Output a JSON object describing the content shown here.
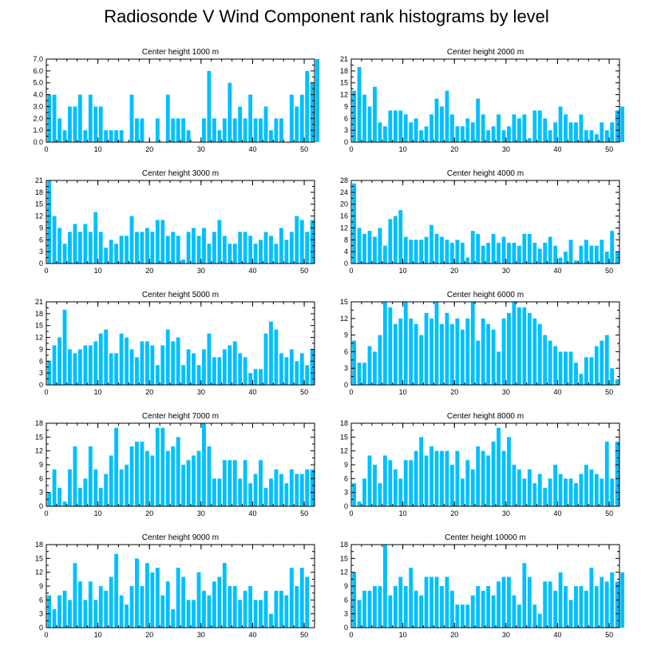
{
  "title": "Radiosonde V Wind Component rank histograms by level",
  "chart_data": [
    {
      "type": "bar",
      "title": "Center height 1000 m",
      "xlim": [
        0,
        52
      ],
      "xticks": [
        0,
        10,
        20,
        30,
        40,
        50
      ],
      "ylim": [
        0,
        7
      ],
      "yticks": [
        0,
        1,
        2,
        3,
        4,
        5,
        6,
        7
      ],
      "ytick_labels": [
        "0.0",
        "1.0",
        "2.0",
        "3.0",
        "4.0",
        "5.0",
        "6.0",
        "7.0"
      ],
      "values": [
        4,
        4,
        2,
        1,
        3,
        3,
        4,
        1,
        4,
        3,
        3,
        1,
        1,
        1,
        1,
        0,
        4,
        2,
        2,
        0,
        0,
        2,
        0,
        4,
        2,
        2,
        2,
        1,
        0,
        0,
        2,
        6,
        2,
        1,
        2,
        5,
        2,
        3,
        2,
        4,
        2,
        2,
        3,
        1,
        2,
        2,
        0,
        4,
        3,
        4,
        6,
        5,
        7
      ]
    },
    {
      "type": "bar",
      "title": "Center height 2000 m",
      "xlim": [
        0,
        52
      ],
      "xticks": [
        0,
        10,
        20,
        30,
        40,
        50
      ],
      "ylim": [
        0,
        21
      ],
      "yticks": [
        0,
        3,
        6,
        9,
        12,
        15,
        18,
        21
      ],
      "ytick_labels": [
        "0",
        "3",
        "6",
        "9",
        "12",
        "15",
        "18",
        "21"
      ],
      "values": [
        13,
        19,
        12,
        9,
        14,
        5,
        4,
        8,
        8,
        8,
        7,
        5,
        6,
        3,
        4,
        7,
        11,
        9,
        13,
        7,
        4,
        4,
        6,
        5,
        11,
        7,
        3,
        4,
        7,
        3,
        4,
        7,
        6,
        7,
        1,
        8,
        8,
        6,
        3,
        5,
        9,
        7,
        5,
        5,
        7,
        3,
        3,
        2,
        5,
        3,
        5,
        8,
        9
      ]
    },
    {
      "type": "bar",
      "title": "Center height 3000 m",
      "xlim": [
        0,
        52
      ],
      "xticks": [
        0,
        10,
        20,
        30,
        40,
        50
      ],
      "ylim": [
        0,
        21
      ],
      "yticks": [
        0,
        3,
        6,
        9,
        12,
        15,
        18,
        21
      ],
      "ytick_labels": [
        "0",
        "3",
        "6",
        "9",
        "12",
        "15",
        "18",
        "21"
      ],
      "values": [
        21,
        12,
        9,
        5,
        8,
        10,
        8,
        10,
        8,
        13,
        8,
        4,
        6,
        5,
        7,
        7,
        12,
        8,
        8,
        9,
        8,
        11,
        11,
        7,
        8,
        7,
        1,
        8,
        9,
        7,
        9,
        5,
        8,
        11,
        7,
        5,
        5,
        8,
        8,
        7,
        5,
        6,
        8,
        7,
        5,
        9,
        6,
        8,
        12,
        11,
        8,
        11
      ]
    },
    {
      "type": "bar",
      "title": "Center height 4000 m",
      "xlim": [
        0,
        52
      ],
      "xticks": [
        0,
        10,
        20,
        30,
        40,
        50
      ],
      "ylim": [
        0,
        28
      ],
      "yticks": [
        0,
        4,
        8,
        12,
        16,
        20,
        24,
        28
      ],
      "ytick_labels": [
        "0",
        "4",
        "8",
        "12",
        "16",
        "20",
        "24",
        "28"
      ],
      "values": [
        27,
        12,
        10,
        11,
        9,
        12,
        6,
        15,
        16,
        18,
        9,
        8,
        8,
        8,
        9,
        13,
        10,
        9,
        8,
        7,
        8,
        7,
        2,
        11,
        10,
        6,
        7,
        10,
        7,
        9,
        7,
        7,
        6,
        10,
        10,
        7,
        5,
        7,
        9,
        6,
        2,
        4,
        8,
        1,
        6,
        8,
        6,
        6,
        8,
        4,
        11,
        4
      ]
    },
    {
      "type": "bar",
      "title": "Center height 5000 m",
      "xlim": [
        0,
        52
      ],
      "xticks": [
        0,
        10,
        20,
        30,
        40,
        50
      ],
      "ylim": [
        0,
        21
      ],
      "yticks": [
        0,
        3,
        6,
        9,
        12,
        15,
        18,
        21
      ],
      "ytick_labels": [
        "0",
        "3",
        "6",
        "9",
        "12",
        "15",
        "18",
        "21"
      ],
      "values": [
        6,
        10,
        12,
        19,
        9,
        8,
        9,
        10,
        10,
        11,
        13,
        14,
        8,
        8,
        13,
        12,
        9,
        7,
        11,
        11,
        10,
        5,
        10,
        14,
        11,
        12,
        5,
        9,
        8,
        5,
        9,
        13,
        7,
        7,
        9,
        10,
        11,
        8,
        7,
        3,
        4,
        4,
        13,
        16,
        14,
        8,
        7,
        9,
        6,
        8,
        5,
        9
      ]
    },
    {
      "type": "bar",
      "title": "Center height 6000 m",
      "xlim": [
        0,
        52
      ],
      "xticks": [
        0,
        10,
        20,
        30,
        40,
        50
      ],
      "ylim": [
        0,
        15
      ],
      "yticks": [
        0,
        3,
        6,
        9,
        12,
        15
      ],
      "ytick_labels": [
        "0",
        "3",
        "6",
        "9",
        "12",
        "15"
      ],
      "values": [
        8,
        4,
        4,
        7,
        6,
        9,
        15,
        14,
        11,
        12,
        15,
        12,
        11,
        9,
        13,
        12,
        15,
        11,
        13,
        11,
        12,
        10,
        12,
        15,
        8,
        12,
        11,
        10,
        6,
        12,
        13,
        15,
        14,
        14,
        13,
        12,
        11,
        9,
        8,
        7,
        6,
        6,
        6,
        4,
        2,
        5,
        5,
        7,
        8,
        9,
        3,
        1
      ]
    },
    {
      "type": "bar",
      "title": "Center height 7000 m",
      "xlim": [
        0,
        52
      ],
      "xticks": [
        0,
        10,
        20,
        30,
        40,
        50
      ],
      "ylim": [
        0,
        18
      ],
      "yticks": [
        0,
        3,
        6,
        9,
        12,
        15,
        18
      ],
      "ytick_labels": [
        "0",
        "3",
        "6",
        "9",
        "12",
        "15",
        "18"
      ],
      "values": [
        3,
        8,
        4,
        1,
        8,
        13,
        4,
        6,
        13,
        8,
        4,
        7,
        11,
        17,
        8,
        9,
        13,
        14,
        14,
        12,
        11,
        17,
        17,
        12,
        13,
        15,
        9,
        10,
        11,
        12,
        18,
        13,
        6,
        6,
        10,
        10,
        10,
        6,
        10,
        5,
        7,
        10,
        4,
        6,
        8,
        7,
        5,
        8,
        7,
        7,
        8,
        8
      ]
    },
    {
      "type": "bar",
      "title": "Center height 8000 m",
      "xlim": [
        0,
        52
      ],
      "xticks": [
        0,
        10,
        20,
        30,
        40,
        50
      ],
      "ylim": [
        0,
        18
      ],
      "yticks": [
        0,
        3,
        6,
        9,
        12,
        15,
        18
      ],
      "ytick_labels": [
        "0",
        "3",
        "6",
        "9",
        "12",
        "15",
        "18"
      ],
      "values": [
        5,
        1,
        6,
        11,
        9,
        5,
        11,
        10,
        8,
        6,
        10,
        10,
        12,
        15,
        11,
        13,
        12,
        12,
        12,
        9,
        12,
        6,
        10,
        8,
        13,
        12,
        11,
        14,
        17,
        12,
        15,
        9,
        8,
        6,
        8,
        5,
        7,
        4,
        6,
        9,
        7,
        6,
        6,
        5,
        7,
        9,
        8,
        7,
        6,
        14,
        6,
        14
      ]
    },
    {
      "type": "bar",
      "title": "Center height 9000 m",
      "xlim": [
        0,
        52
      ],
      "xticks": [
        0,
        10,
        20,
        30,
        40,
        50
      ],
      "ylim": [
        0,
        18
      ],
      "yticks": [
        0,
        3,
        6,
        9,
        12,
        15,
        18
      ],
      "ytick_labels": [
        "0",
        "3",
        "6",
        "9",
        "12",
        "15",
        "18"
      ],
      "values": [
        7,
        4,
        7,
        8,
        6,
        14,
        10,
        6,
        10,
        6,
        9,
        8,
        11,
        16,
        7,
        5,
        9,
        15,
        9,
        14,
        12,
        13,
        7,
        10,
        4,
        13,
        11,
        6,
        6,
        12,
        8,
        7,
        10,
        11,
        14,
        9,
        9,
        6,
        8,
        9,
        6,
        6,
        8,
        3,
        8,
        8,
        7,
        13,
        9,
        13,
        11
      ]
    },
    {
      "type": "bar",
      "title": "Center height 10000 m",
      "xlim": [
        0,
        52
      ],
      "xticks": [
        0,
        10,
        20,
        30,
        40,
        50
      ],
      "ylim": [
        0,
        18
      ],
      "yticks": [
        0,
        3,
        6,
        9,
        12,
        15,
        18
      ],
      "ytick_labels": [
        "0",
        "3",
        "6",
        "9",
        "12",
        "15",
        "18"
      ],
      "values": [
        12,
        6,
        8,
        8,
        9,
        9,
        18,
        7,
        9,
        11,
        9,
        13,
        8,
        7,
        11,
        11,
        11,
        9,
        11,
        8,
        5,
        5,
        5,
        7,
        9,
        8,
        9,
        7,
        10,
        11,
        11,
        7,
        5,
        14,
        11,
        5,
        3,
        10,
        10,
        8,
        12,
        9,
        6,
        9,
        9,
        8,
        13,
        9,
        11,
        10,
        12,
        10,
        12
      ]
    }
  ]
}
